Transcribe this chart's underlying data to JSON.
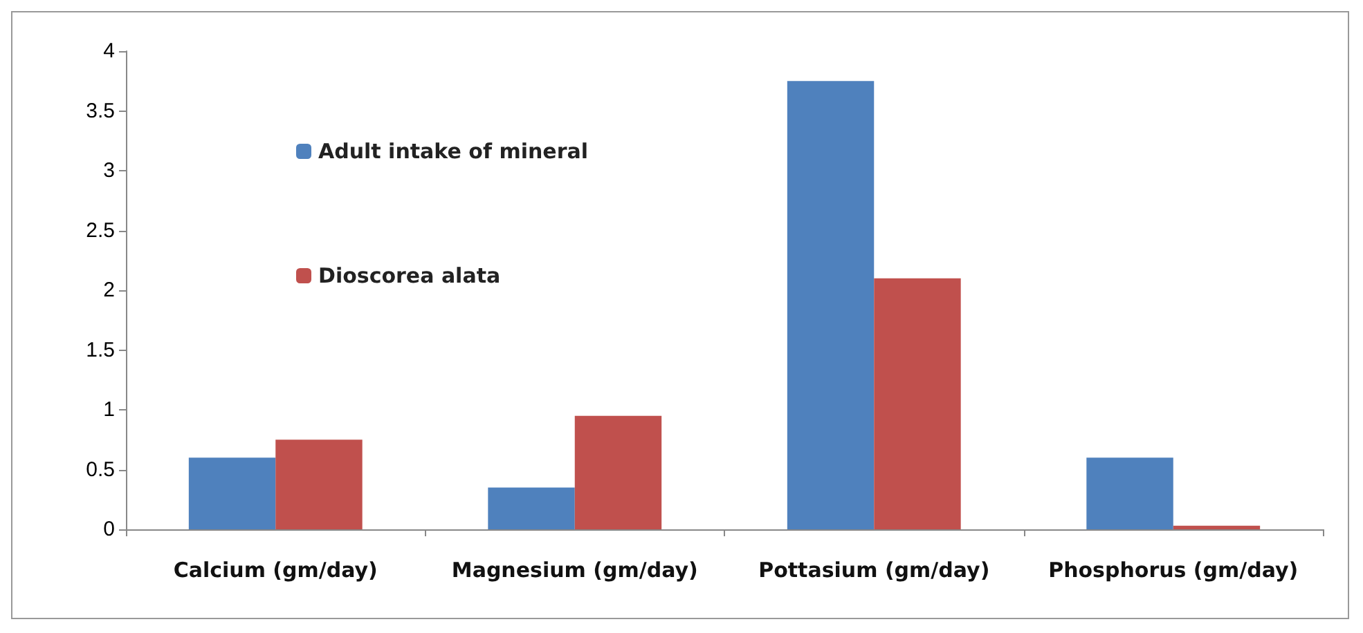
{
  "chart_data": {
    "type": "bar",
    "categories": [
      "Calcium (gm/day)",
      "Magnesium (gm/day)",
      "Pottasium (gm/day)",
      "Phosphorus (gm/day)"
    ],
    "series": [
      {
        "name": "Adult intake of mineral",
        "color": "#4f81bd",
        "values": [
          0.6,
          0.35,
          3.75,
          0.6
        ]
      },
      {
        "name": "Dioscorea alata",
        "color": "#c0504d",
        "values": [
          0.75,
          0.95,
          2.1,
          0.03
        ]
      }
    ],
    "ylim": [
      0,
      4
    ],
    "yticks": [
      0,
      0.5,
      1,
      1.5,
      2,
      2.5,
      3,
      3.5,
      4
    ],
    "grid": false,
    "legend": "top left"
  }
}
